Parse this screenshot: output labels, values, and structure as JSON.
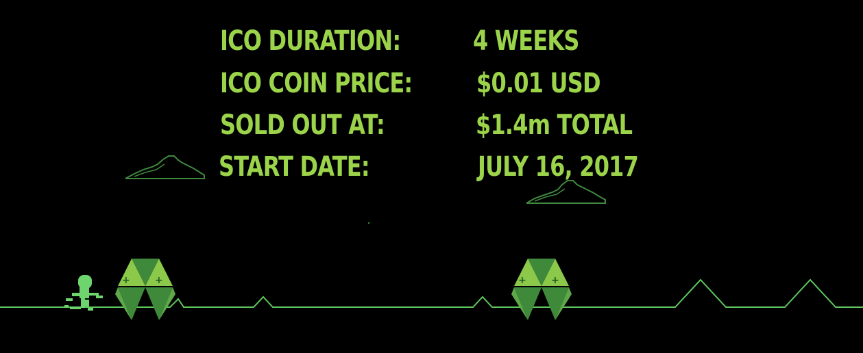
{
  "ico_info": {
    "rows": [
      {
        "label": "ICO DURATION:",
        "value": "4 WEEKS"
      },
      {
        "label": "ICO COIN PRICE:",
        "value": "$0.01 USD"
      },
      {
        "label": "SOLD OUT AT:",
        "value": "$1.4m TOTAL"
      },
      {
        "label": "START DATE:",
        "value": "JULY 16, 2017"
      }
    ]
  },
  "colors": {
    "background": "#000000",
    "text": "#9bd44a",
    "ground": "#5ec85e",
    "cloud": "#3f8a3f",
    "runner": "#6ed46e",
    "coin_light": "#8cc84a",
    "coin_dark": "#3e8a3a"
  }
}
